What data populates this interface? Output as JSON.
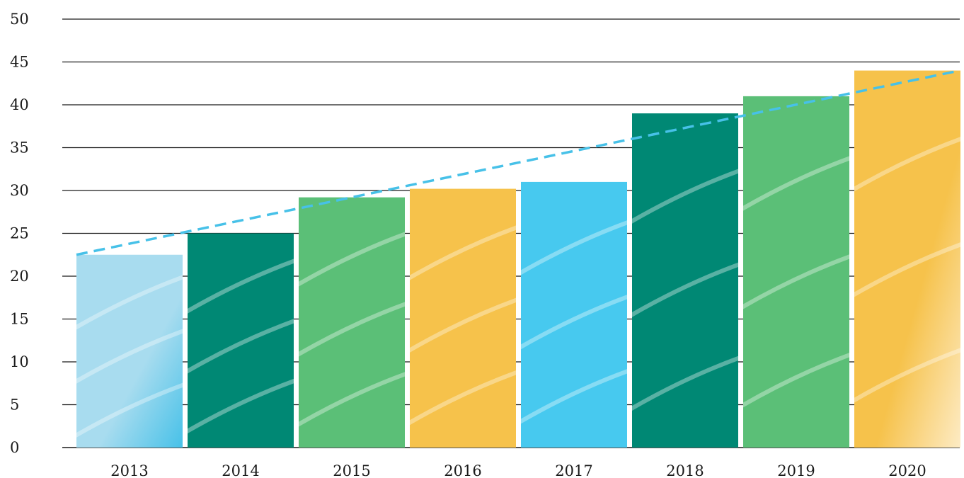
{
  "chart_data": {
    "type": "bar",
    "title": "",
    "xlabel": "",
    "ylabel": "",
    "categories": [
      "2013",
      "2014",
      "2015",
      "2016",
      "2017",
      "2018",
      "2019",
      "2020"
    ],
    "values": [
      22.5,
      25,
      29.2,
      30.2,
      31,
      39,
      41,
      44
    ],
    "ylim": [
      0,
      50
    ],
    "yticks": [
      0,
      5,
      10,
      15,
      20,
      25,
      30,
      35,
      40,
      45,
      50
    ],
    "grid": true,
    "legend": "none",
    "bar_colors": [
      "#a8dcef",
      "#008874",
      "#5bbf77",
      "#f6c24b",
      "#47c9ef",
      "#008874",
      "#5bbf77",
      "#f6c24b"
    ],
    "bar_accent_colors": [
      "#47c1e8",
      "#008874",
      "#5bbf77",
      "#f6c24b",
      "#47c9ef",
      "#008874",
      "#5bbf77",
      "#fdebc4"
    ],
    "trendline": {
      "start": 22.5,
      "end": 44,
      "color": "#47c1e8",
      "style": "dashed"
    }
  }
}
